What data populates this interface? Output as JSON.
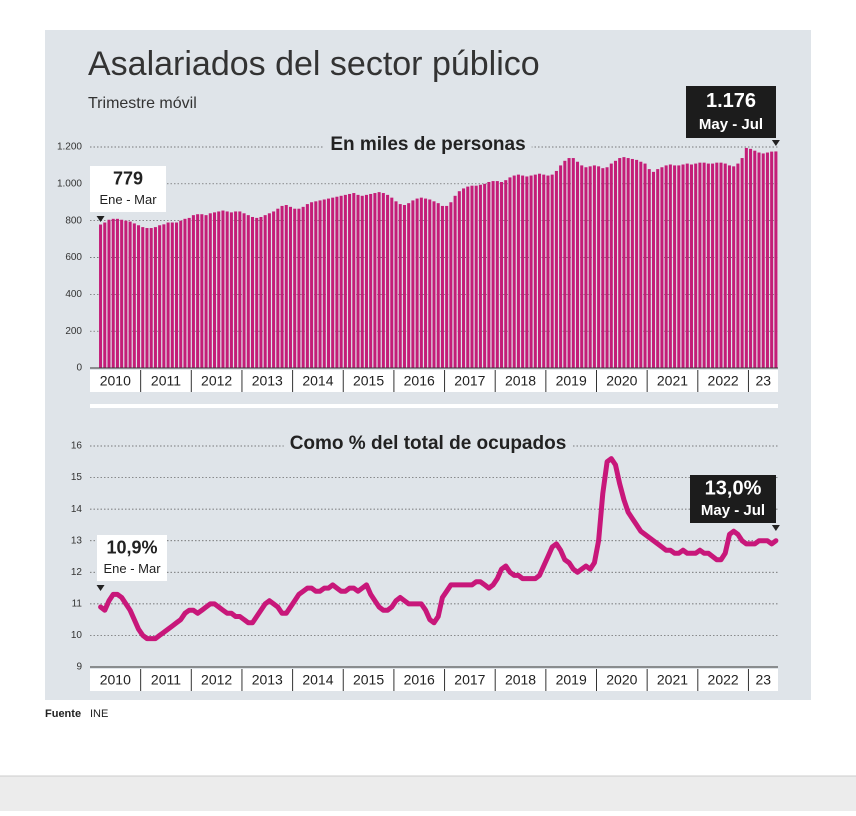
{
  "title": "Asalariados del sector público",
  "subtitle": "Trimestre móvil",
  "source_label": "Fuente",
  "source": "INE",
  "chart_data": [
    {
      "type": "bar",
      "title": "En miles de personas",
      "color": "#c41d78",
      "year_labels": [
        "2010",
        "2011",
        "2012",
        "2013",
        "2014",
        "2015",
        "2016",
        "2017",
        "2018",
        "2019",
        "2020",
        "2021",
        "2022",
        "23"
      ],
      "values": [
        779,
        790,
        805,
        810,
        810,
        805,
        800,
        795,
        785,
        775,
        765,
        760,
        760,
        765,
        775,
        780,
        790,
        790,
        790,
        800,
        810,
        815,
        830,
        835,
        835,
        830,
        840,
        845,
        850,
        855,
        850,
        845,
        850,
        850,
        840,
        830,
        820,
        815,
        820,
        830,
        840,
        850,
        865,
        880,
        885,
        875,
        865,
        865,
        875,
        890,
        900,
        905,
        910,
        915,
        920,
        925,
        930,
        935,
        940,
        945,
        950,
        940,
        935,
        940,
        945,
        950,
        955,
        950,
        940,
        925,
        905,
        890,
        885,
        895,
        910,
        920,
        925,
        920,
        915,
        905,
        895,
        880,
        880,
        900,
        935,
        960,
        975,
        985,
        990,
        990,
        995,
        1000,
        1010,
        1015,
        1015,
        1010,
        1020,
        1035,
        1045,
        1050,
        1045,
        1040,
        1045,
        1050,
        1055,
        1050,
        1045,
        1050,
        1070,
        1100,
        1125,
        1140,
        1140,
        1120,
        1100,
        1090,
        1095,
        1100,
        1095,
        1085,
        1090,
        1110,
        1125,
        1140,
        1145,
        1140,
        1135,
        1130,
        1120,
        1110,
        1080,
        1065,
        1080,
        1090,
        1100,
        1105,
        1100,
        1100,
        1105,
        1110,
        1105,
        1110,
        1115,
        1115,
        1110,
        1110,
        1115,
        1115,
        1110,
        1100,
        1095,
        1110,
        1140,
        1195,
        1190,
        1180,
        1170,
        1165,
        1170,
        1175,
        1176
      ],
      "ylim": [
        0,
        1200
      ],
      "yticks": [
        0,
        200,
        400,
        600,
        800,
        {
          "value": 1000,
          "label": "1.000"
        },
        {
          "value": 1200,
          "label": "1.200"
        }
      ],
      "grid": true,
      "annotations": [
        {
          "text": "779",
          "period": "Ene - Mar"
        },
        {
          "text": "1.176",
          "period": "May - Jul"
        }
      ]
    },
    {
      "type": "line",
      "title": "Como % del total de ocupados",
      "color": "#c8177a",
      "year_labels": [
        "2010",
        "2011",
        "2012",
        "2013",
        "2014",
        "2015",
        "2016",
        "2017",
        "2018",
        "2019",
        "2020",
        "2021",
        "2022",
        "23"
      ],
      "values": [
        10.9,
        10.8,
        11.1,
        11.3,
        11.3,
        11.2,
        11.0,
        10.8,
        10.5,
        10.2,
        10.0,
        9.9,
        9.9,
        9.9,
        10.0,
        10.1,
        10.2,
        10.3,
        10.4,
        10.5,
        10.7,
        10.8,
        10.8,
        10.7,
        10.8,
        10.9,
        11.0,
        11.0,
        10.9,
        10.8,
        10.7,
        10.7,
        10.6,
        10.6,
        10.5,
        10.4,
        10.4,
        10.6,
        10.8,
        11.0,
        11.1,
        11.0,
        10.9,
        10.7,
        10.7,
        10.9,
        11.1,
        11.3,
        11.4,
        11.5,
        11.5,
        11.4,
        11.4,
        11.5,
        11.5,
        11.6,
        11.5,
        11.4,
        11.4,
        11.5,
        11.5,
        11.4,
        11.5,
        11.6,
        11.3,
        11.1,
        10.9,
        10.8,
        10.8,
        10.9,
        11.1,
        11.2,
        11.1,
        11.0,
        11.0,
        11.0,
        11.0,
        10.8,
        10.5,
        10.4,
        10.6,
        11.2,
        11.4,
        11.6,
        11.6,
        11.6,
        11.6,
        11.6,
        11.6,
        11.7,
        11.7,
        11.6,
        11.5,
        11.6,
        11.8,
        12.1,
        12.2,
        12.0,
        11.9,
        11.9,
        11.8,
        11.8,
        11.8,
        11.8,
        11.9,
        12.2,
        12.5,
        12.8,
        12.9,
        12.7,
        12.4,
        12.3,
        12.1,
        12.0,
        12.1,
        12.2,
        12.1,
        12.3,
        13.0,
        14.5,
        15.5,
        15.6,
        15.4,
        14.8,
        14.3,
        13.9,
        13.7,
        13.5,
        13.3,
        13.2,
        13.1,
        13.0,
        12.9,
        12.8,
        12.7,
        12.7,
        12.6,
        12.6,
        12.7,
        12.6,
        12.6,
        12.6,
        12.7,
        12.6,
        12.6,
        12.5,
        12.4,
        12.4,
        12.6,
        13.2,
        13.3,
        13.2,
        13.0,
        12.9,
        12.9,
        12.9,
        13.0,
        13.0,
        13.0,
        12.9,
        13.0
      ],
      "ylim": [
        9,
        16
      ],
      "yticks": [
        9,
        10,
        11,
        12,
        13,
        14,
        15,
        16
      ],
      "grid": true,
      "annotations": [
        {
          "text": "10,9%",
          "period": "Ene - Mar"
        },
        {
          "text": "13,0%",
          "period": "May - Jul"
        }
      ]
    }
  ]
}
